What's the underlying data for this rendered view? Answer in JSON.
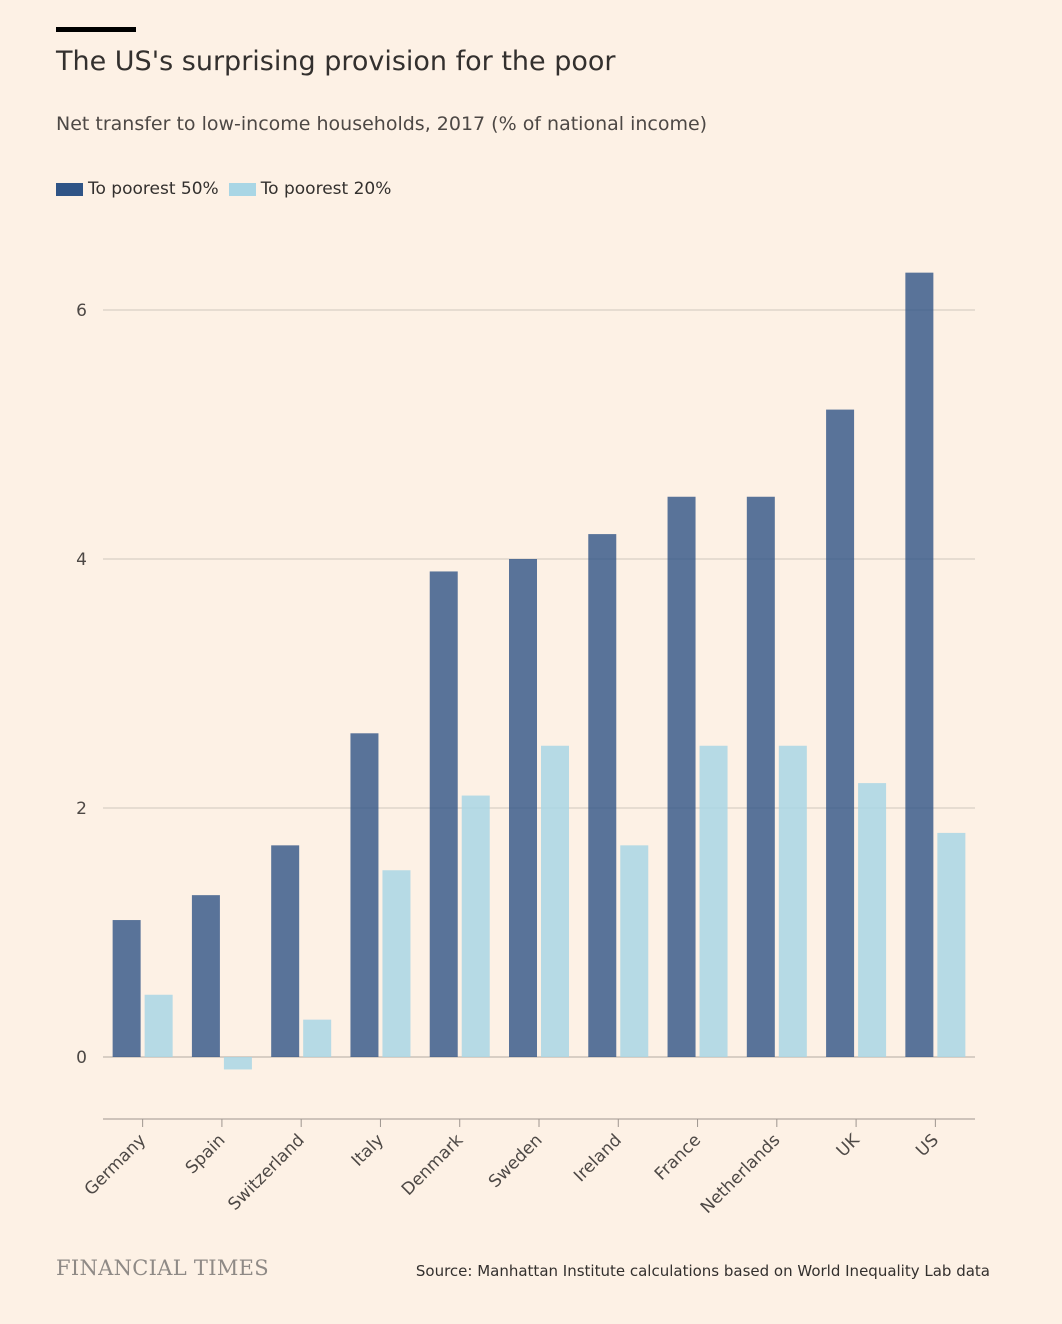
{
  "chart_data": {
    "type": "bar",
    "title": "The US's surprising provision for the poor",
    "subtitle": "Net transfer to low-income households, 2017 (% of national income)",
    "categories": [
      "Germany",
      "Spain",
      "Switzerland",
      "Italy",
      "Denmark",
      "Sweden",
      "Ireland",
      "France",
      "Netherlands",
      "UK",
      "US"
    ],
    "series": [
      {
        "name": "To poorest 50%",
        "color": "#2f5486",
        "values": [
          1.1,
          1.3,
          1.7,
          2.6,
          3.9,
          4.0,
          4.2,
          4.5,
          4.5,
          5.2,
          6.3
        ]
      },
      {
        "name": "To poorest 20%",
        "color": "#a9d6e5",
        "values": [
          0.5,
          -0.1,
          0.3,
          1.5,
          2.1,
          2.5,
          1.7,
          2.5,
          2.5,
          2.2,
          1.8
        ]
      }
    ],
    "y_ticks": [
      0,
      2,
      4,
      6
    ],
    "ylim": [
      -0.5,
      6.5
    ],
    "xlabel": "",
    "ylabel": "",
    "grid": true,
    "legend": "top-left"
  },
  "footer": {
    "brand": "FINANCIAL TIMES",
    "source": "Source: Manhattan Institute calculations based on World Inequality Lab data"
  }
}
